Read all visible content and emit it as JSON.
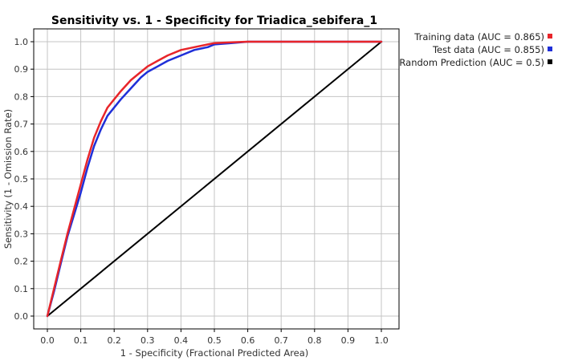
{
  "chart_data": {
    "type": "line",
    "title": "Sensitivity vs. 1 - Specificity for Triadica_sebifera_1",
    "xlabel": "1 - Specificity  (Fractional Predicted Area)",
    "ylabel": "Sensitivity  (1 - Omission Rate)",
    "xlim": [
      0,
      1
    ],
    "ylim": [
      0,
      1
    ],
    "xticks": [
      "0.0",
      "0.1",
      "0.2",
      "0.3",
      "0.4",
      "0.5",
      "0.6",
      "0.7",
      "0.8",
      "0.9",
      "1.0"
    ],
    "yticks": [
      "0.0",
      "0.1",
      "0.2",
      "0.3",
      "0.4",
      "0.5",
      "0.6",
      "0.7",
      "0.8",
      "0.9",
      "1.0"
    ],
    "grid": true,
    "legend_position": "top-right outside",
    "series": [
      {
        "name": "Training data (AUC = 0.865)",
        "color": "#e8252a",
        "x": [
          0,
          0.02,
          0.04,
          0.06,
          0.08,
          0.1,
          0.12,
          0.14,
          0.16,
          0.18,
          0.2,
          0.22,
          0.25,
          0.28,
          0.3,
          0.33,
          0.36,
          0.4,
          0.44,
          0.48,
          0.5,
          0.55,
          0.6,
          0.65,
          0.7,
          0.8,
          0.9,
          1.0
        ],
        "y": [
          0,
          0.1,
          0.2,
          0.3,
          0.39,
          0.48,
          0.57,
          0.65,
          0.71,
          0.76,
          0.79,
          0.82,
          0.86,
          0.89,
          0.91,
          0.93,
          0.95,
          0.97,
          0.98,
          0.99,
          0.995,
          0.998,
          1.0,
          1.0,
          1.0,
          1.0,
          1.0,
          1.0
        ]
      },
      {
        "name": "Test data (AUC = 0.855)",
        "color": "#1f2fd8",
        "x": [
          0,
          0.02,
          0.04,
          0.06,
          0.08,
          0.1,
          0.12,
          0.14,
          0.16,
          0.18,
          0.2,
          0.22,
          0.25,
          0.28,
          0.3,
          0.33,
          0.36,
          0.4,
          0.44,
          0.48,
          0.5,
          0.55,
          0.6,
          0.65,
          0.7,
          0.8,
          0.9,
          1.0
        ],
        "y": [
          0,
          0.09,
          0.19,
          0.29,
          0.37,
          0.45,
          0.54,
          0.62,
          0.68,
          0.73,
          0.76,
          0.79,
          0.83,
          0.87,
          0.89,
          0.91,
          0.93,
          0.95,
          0.97,
          0.98,
          0.99,
          0.995,
          1.0,
          1.0,
          1.0,
          1.0,
          1.0,
          1.0
        ]
      },
      {
        "name": "Random Prediction (AUC = 0.5)",
        "color": "#000000",
        "x": [
          0,
          1
        ],
        "y": [
          0,
          1
        ]
      }
    ]
  }
}
